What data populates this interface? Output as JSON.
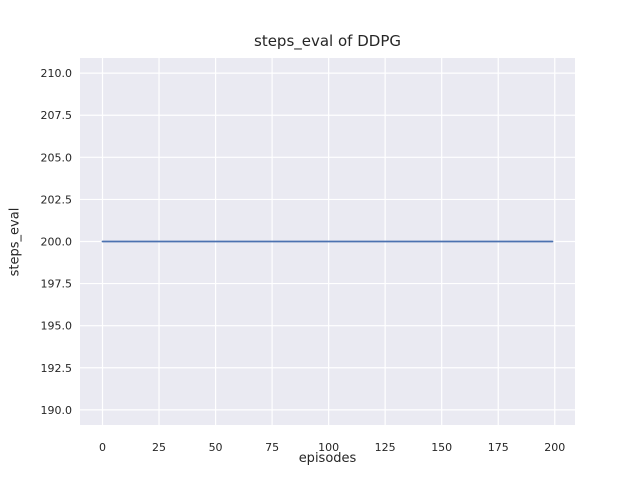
{
  "chart_data": {
    "type": "line",
    "title": "steps_eval of DDPG",
    "xlabel": "episodes",
    "ylabel": "steps_eval",
    "series": [
      {
        "name": "steps_eval",
        "x": [
          0,
          199
        ],
        "y": [
          200,
          200
        ],
        "description": "constant horizontal line at steps_eval = 200 for all episodes 0-199",
        "color": "#4C72B0"
      }
    ],
    "xlim": [
      -9.95,
      208.95
    ],
    "ylim": [
      189.1,
      210.9
    ],
    "xticks": [
      0,
      25,
      50,
      75,
      100,
      125,
      150,
      175,
      200
    ],
    "xtick_labels": [
      "0",
      "25",
      "50",
      "75",
      "100",
      "125",
      "150",
      "175",
      "200"
    ],
    "yticks": [
      190.0,
      192.5,
      195.0,
      197.5,
      200.0,
      202.5,
      205.0,
      207.5,
      210.0
    ],
    "ytick_labels": [
      "190.0",
      "192.5",
      "195.0",
      "197.5",
      "200.0",
      "202.5",
      "205.0",
      "207.5",
      "210.0"
    ],
    "grid": true,
    "legend": "none",
    "style": {
      "figure_bg": "#ffffff",
      "plot_bg": "#eaeaf2",
      "grid_color": "#ffffff",
      "line_color": "#4C72B0",
      "text_color": "#262626"
    }
  }
}
